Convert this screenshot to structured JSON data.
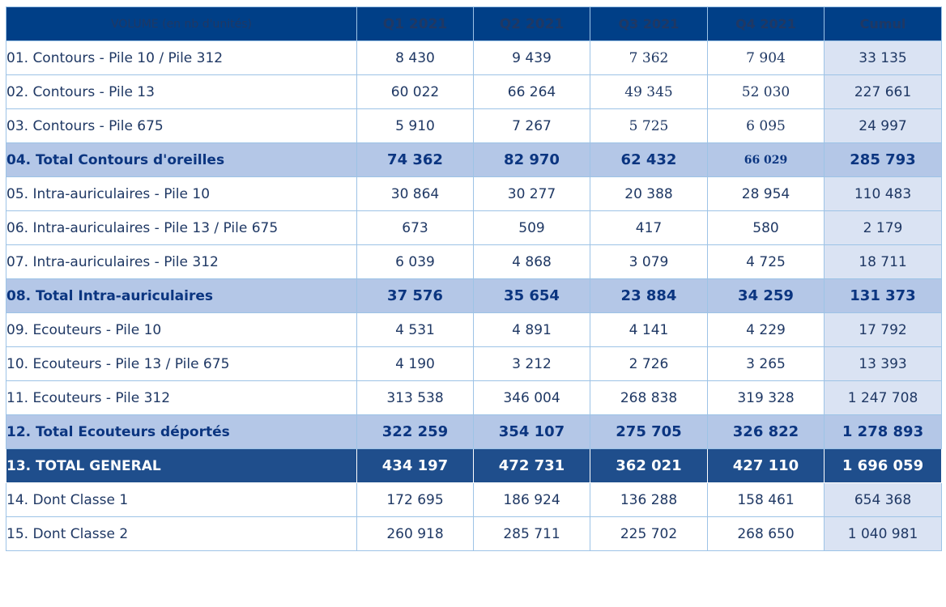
{
  "header": {
    "label": "VOLUME (en nb d'unités)",
    "q1": "Q1 2021",
    "q2": "Q2 2021",
    "q3": "Q3 2021",
    "q4": "Q4 2021",
    "cumul": "Cumul"
  },
  "rows": [
    {
      "label": "01. Contours - Pile 10 / Pile 312",
      "q1": "8 430",
      "q2": "9 439",
      "q3": "7 362",
      "q4": "7 904",
      "cumul": "33 135"
    },
    {
      "label": "02. Contours - Pile 13",
      "q1": "60 022",
      "q2": "66 264",
      "q3": "49 345",
      "q4": "52 030",
      "cumul": "227 661"
    },
    {
      "label": "03. Contours - Pile 675",
      "q1": "5 910",
      "q2": "7 267",
      "q3": "5 725",
      "q4": "6 095",
      "cumul": "24 997"
    },
    {
      "label": "04. Total Contours d'oreilles",
      "q1": "74 362",
      "q2": "82 970",
      "q3": "62 432",
      "q4": "66 029",
      "cumul": "285 793"
    },
    {
      "label": "05. Intra-auriculaires - Pile 10",
      "q1": "30 864",
      "q2": "30 277",
      "q3": "20 388",
      "q4": "28 954",
      "cumul": "110 483"
    },
    {
      "label": "06. Intra-auriculaires - Pile 13 / Pile 675",
      "q1": "673",
      "q2": "509",
      "q3": "417",
      "q4": "580",
      "cumul": "2 179"
    },
    {
      "label": "07. Intra-auriculaires - Pile 312",
      "q1": "6 039",
      "q2": "4 868",
      "q3": "3 079",
      "q4": "4 725",
      "cumul": "18 711"
    },
    {
      "label": "08. Total Intra-auriculaires",
      "q1": "37 576",
      "q2": "35 654",
      "q3": "23 884",
      "q4": "34 259",
      "cumul": "131 373"
    },
    {
      "label": "09. Ecouteurs - Pile 10",
      "q1": "4 531",
      "q2": "4 891",
      "q3": "4 141",
      "q4": "4 229",
      "cumul": "17 792"
    },
    {
      "label": "10. Ecouteurs - Pile 13 / Pile 675",
      "q1": "4 190",
      "q2": "3 212",
      "q3": "2 726",
      "q4": "3 265",
      "cumul": "13 393"
    },
    {
      "label": "11. Ecouteurs - Pile 312",
      "q1": "313 538",
      "q2": "346 004",
      "q3": "268 838",
      "q4": "319 328",
      "cumul": "1 247 708"
    },
    {
      "label": "12. Total Ecouteurs déportés",
      "q1": "322 259",
      "q2": "354 107",
      "q3": "275 705",
      "q4": "326 822",
      "cumul": "1 278 893"
    },
    {
      "label": "13. TOTAL GENERAL",
      "q1": "434 197",
      "q2": "472 731",
      "q3": "362 021",
      "q4": "427 110",
      "cumul": "1 696 059"
    },
    {
      "label": "14. Dont Classe 1",
      "q1": "172 695",
      "q2": "186 924",
      "q3": "136 288",
      "q4": "158 461",
      "cumul": "654 368"
    },
    {
      "label": "15. Dont Classe 2",
      "q1": "260 918",
      "q2": "285 711",
      "q3": "225 702",
      "q4": "268 650",
      "cumul": "1 040 981"
    }
  ]
}
